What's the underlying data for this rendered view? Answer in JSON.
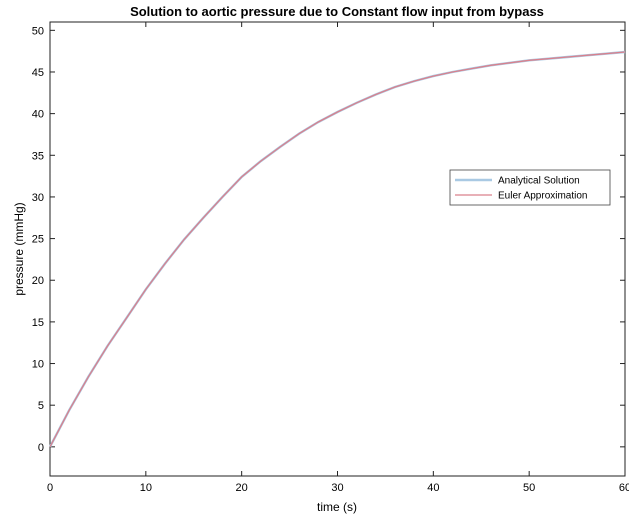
{
  "chart_data": {
    "type": "line",
    "title": "Solution to aortic pressure due to Constant flow input from bypass",
    "xlabel": "time (s)",
    "ylabel": "pressure (mmHg)",
    "xlim": [
      0,
      60
    ],
    "ylim": [
      -3.5,
      51
    ],
    "xticks": [
      "0",
      "10",
      "20",
      "30",
      "40",
      "50",
      "60"
    ],
    "yticks": [
      "0",
      "5",
      "10",
      "15",
      "20",
      "25",
      "30",
      "35",
      "40",
      "45",
      "50"
    ],
    "grid": false,
    "legend_position": "right",
    "series": [
      {
        "name": "Analytical Solution",
        "color": "#a9c9e3",
        "x": [
          0,
          2,
          4,
          6,
          8,
          10,
          12,
          14,
          16,
          18,
          20,
          22,
          24,
          26,
          28,
          30,
          32,
          34,
          36,
          38,
          40,
          42,
          44,
          46,
          48,
          50,
          52,
          54,
          56,
          58,
          60
        ],
        "y": [
          0,
          4.4,
          8.4,
          12.1,
          15.5,
          18.9,
          22.0,
          24.9,
          27.5,
          30.0,
          32.4,
          34.3,
          36.0,
          37.6,
          39.0,
          40.2,
          41.3,
          42.3,
          43.2,
          43.9,
          44.5,
          45.0,
          45.4,
          45.8,
          46.1,
          46.4,
          46.6,
          46.8,
          47.0,
          47.2,
          47.4
        ]
      },
      {
        "name": "Euler Approximation",
        "color": "#d9808c",
        "x": [
          0,
          2,
          4,
          6,
          8,
          10,
          12,
          14,
          16,
          18,
          20,
          22,
          24,
          26,
          28,
          30,
          32,
          34,
          36,
          38,
          40,
          42,
          44,
          46,
          48,
          50,
          52,
          54,
          56,
          58,
          60
        ],
        "y": [
          0,
          4.4,
          8.4,
          12.1,
          15.5,
          18.9,
          22.0,
          24.9,
          27.5,
          30.0,
          32.4,
          34.3,
          36.0,
          37.6,
          39.0,
          40.2,
          41.3,
          42.3,
          43.2,
          43.9,
          44.5,
          45.0,
          45.4,
          45.8,
          46.1,
          46.4,
          46.6,
          46.8,
          47.0,
          47.2,
          47.4
        ]
      }
    ]
  }
}
